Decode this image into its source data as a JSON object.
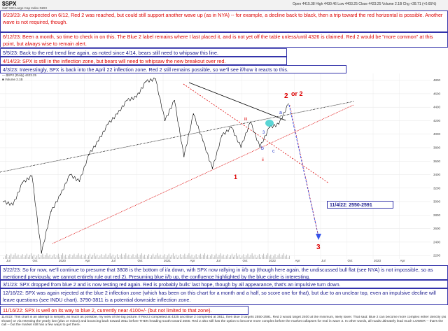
{
  "header": {
    "ticker": "$SPX",
    "subtitle": "S&P 500 Large Cap Index  INDX",
    "quote": "Open 4415.38  High 4430.46  Low 4403.25  Close 4423.25  Volume 2.1B  Chg +28.71 (+0.65%)",
    "footer_site": "@ StockCharts.com"
  },
  "legend": [
    "— $SPX (Daily) 4423.25",
    "■ Volume 2.1B"
  ],
  "annotations_top": [
    {
      "color": "red",
      "text": "6/23/23:  As expected on 6/12, Red 2 was reached, but could still support another wave up (as in NYA) -- for example, a decline back to black, then a trip toward the red horizontal is possible.  Another wave is not required, though."
    },
    {
      "color": "red",
      "text": "6/12/23:  Been a month, so time to check in on this.  The Blue 2 label remains where I last placed it, and is not yet off the table unless/until 4326 is claimed.  Red 2 would be \"more common\" at this point, but always wise to remain alert."
    },
    {
      "color": "blue",
      "text": "5/5/23:  Back to the red trend line again, as noted since 4/14, bears still need to whipsaw this line."
    },
    {
      "color": "red",
      "text": "4/14/23:  SPX is still in the inflection zone, but bears will need to whipsaw the new breakout over red."
    },
    {
      "color": "blue",
      "text": "4/3/23:  Interestingly, SPX is back into the April 22 inflection zone.  Red 2 still remains possible, so we'll see if/how it reacts to this."
    }
  ],
  "annotations_bottom": [
    {
      "color": "blue",
      "text": "3/22/23:  So for now, we'll continue to presume that 3808 is the bottom of i/a down, with SPX now rallying in ii/b up (though here again, the undiscussed bull flat (see NYA) is not impossible, so as mentioned previously, we cannot entirely rule out red 2).  Presuming blue ii/b up, the confluence highlighted by the blue circle is interesting."
    },
    {
      "color": "blue",
      "text": "3/1/23:  SPX dropped from blue 2 and is now testing red again.  Red is probably bulls' last hope, though by all appearance, that's an impulsive turn down."
    },
    {
      "color": "blue",
      "text": "12/16/22:  SPX was again rejected at the blue 2 inflection zone (which has been on this chart for a month and a half, so score one for that), but due to an unclear top, even an impulsive decline will leave questions (see INDU chart).  3790-3811 is a potential downside inflection zone."
    },
    {
      "color": "red",
      "text": "11/16/22:  SPX is well on its way to blue 2, currently near 4100+/- (but not limited to that zone)."
    }
  ],
  "footer_text": "11/4/22:  This chart is an attempt to simplify, as much as possible, my view of the big picture.  If Red 2 completed at 4325 and Blue 2 completed at 3811, then blue 3 targets 2550-2591.  Red 3 would target 2400 at the minimum, likely lower.  That said:  Blue 2 can become more complex either directly (as shown) or via retesting the yearly low (plus or minus) and bouncing back toward 3911 before THEN heading south toward 2600.  Red 2 also still has the option to become more complex before the market collapses for real in wave 3.  In other words, all roads ultimately lead much LOWER -- that's the call -- but the market still has a few ways to get there.",
  "chart_labels": {
    "target": "11/4/22: 2550-2591",
    "red2": "2",
    "or2": "or 2",
    "red1": "1",
    "red3": "3",
    "blue_b": "b",
    "blue_c": "c",
    "blue_a": "a",
    "iii": "iii",
    "ii": "ii",
    "blue3": "3"
  },
  "colors": {
    "price": "#000000",
    "red_line": "#dd0000",
    "blue_arrow": "#3355ee",
    "circle": "#33cccc",
    "black_line": "#000000"
  },
  "chart_data": {
    "type": "line",
    "title": "$SPX",
    "series": [
      {
        "name": "$SPX (Daily)",
        "x": [
          "2019-07",
          "2019-10",
          "2020-01",
          "2020-02",
          "2020-03",
          "2020-04",
          "2020-06",
          "2020-08",
          "2020-10",
          "2020-12",
          "2021-02",
          "2021-04",
          "2021-06",
          "2021-08",
          "2021-10",
          "2021-12",
          "2022-01",
          "2022-03",
          "2022-04",
          "2022-06",
          "2022-08",
          "2022-09",
          "2022-10",
          "2022-11",
          "2022-12",
          "2023-01",
          "2023-02",
          "2023-03",
          "2023-04",
          "2023-05",
          "2023-06"
        ],
        "values": [
          3000,
          2950,
          3280,
          3380,
          2237,
          2850,
          3100,
          3400,
          3300,
          3700,
          3900,
          4150,
          4300,
          4500,
          4550,
          4780,
          4818,
          4200,
          4500,
          3666,
          4300,
          3900,
          3491,
          3980,
          4100,
          3808,
          4180,
          3808,
          4100,
          4150,
          4448
        ]
      }
    ],
    "ylim": [
      2150,
      4900
    ],
    "yticks": [
      2200,
      2400,
      2600,
      2800,
      3000,
      3200,
      3400,
      3600,
      3800,
      4000,
      4200,
      4400,
      4600,
      4800
    ],
    "xticks": [
      "Jul",
      "Oct",
      "2020",
      "Apr",
      "Jul",
      "Oct",
      "2021",
      "Apr",
      "Jul",
      "Oct",
      "2022",
      "Apr",
      "Jul",
      "Oct",
      "2023",
      "Apr"
    ],
    "grid": true
  }
}
